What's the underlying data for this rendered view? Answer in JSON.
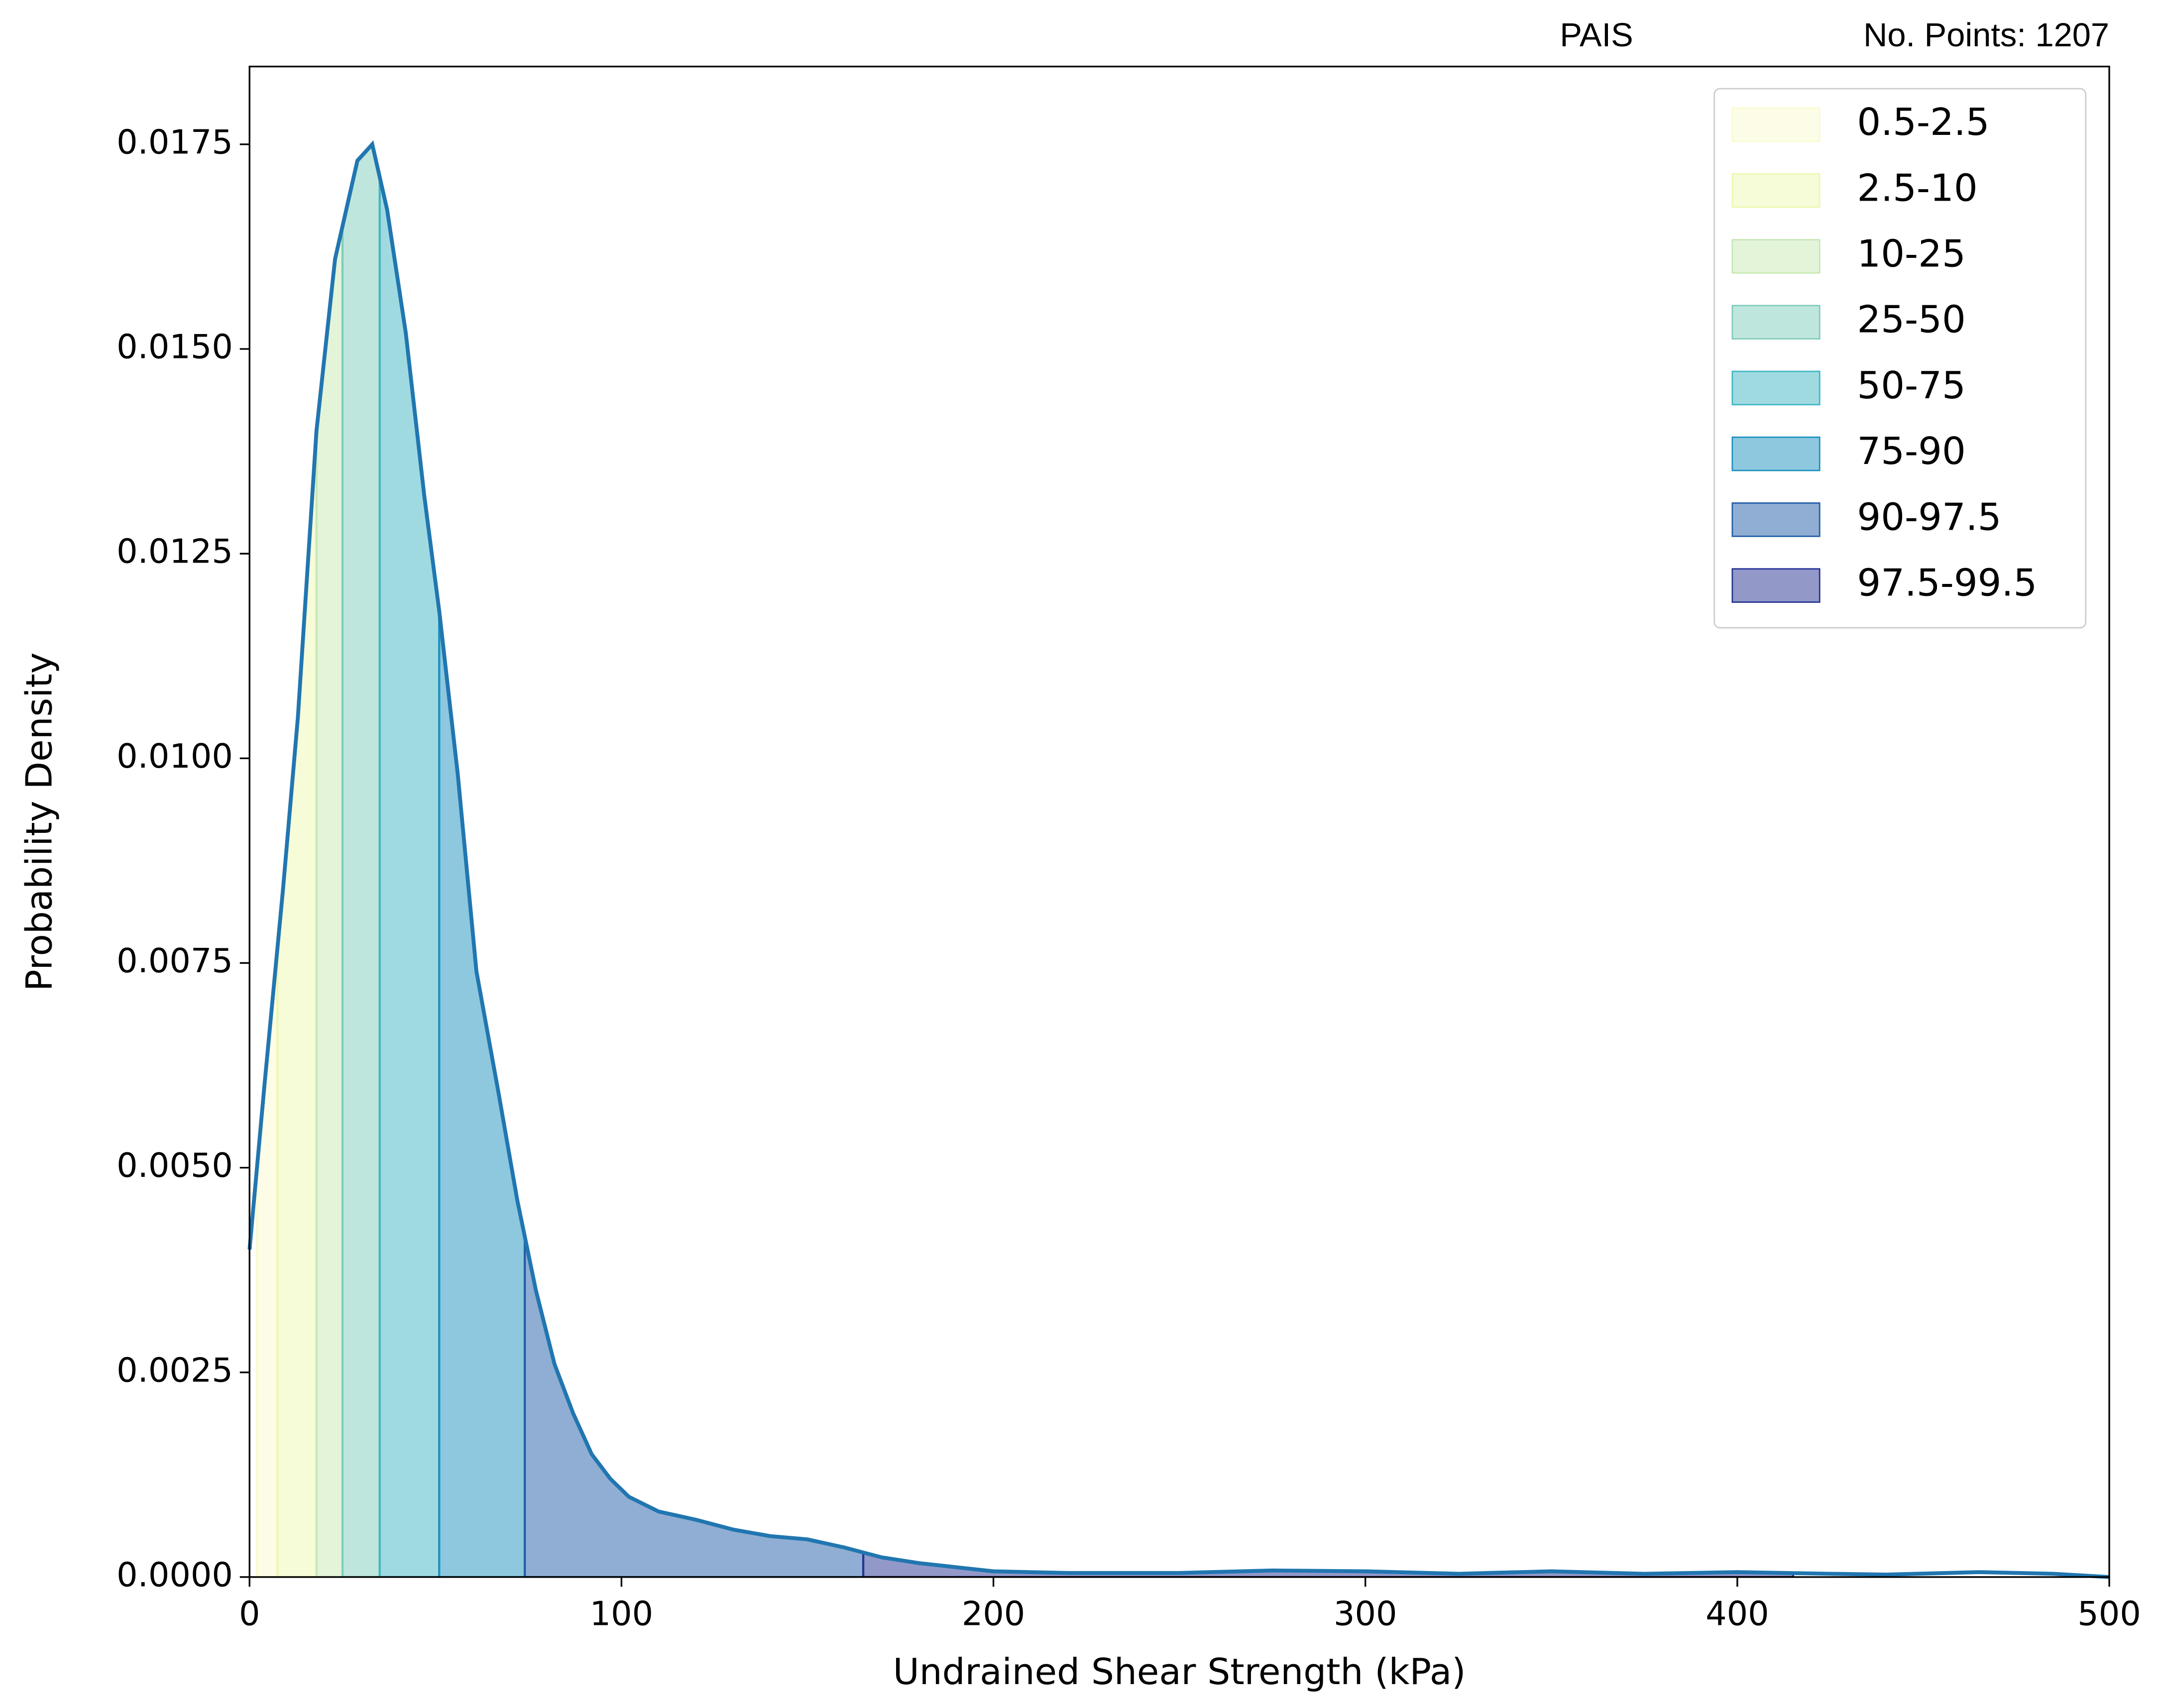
{
  "chart_data": {
    "type": "kde-bands",
    "title_left": "PAIS",
    "title_right": "No. Points: 1207",
    "x_label": "Undrained Shear Strength (kPa)",
    "y_label": "Probability Density",
    "x": [
      0,
      4,
      9,
      13,
      18,
      23,
      29,
      33,
      37,
      42,
      47,
      51,
      56,
      61,
      67,
      72,
      77,
      82,
      87,
      92,
      97,
      102,
      110,
      120,
      130,
      140,
      150,
      160,
      170,
      180,
      190,
      200,
      220,
      250,
      275,
      300,
      325,
      350,
      375,
      400,
      425,
      440,
      465,
      485,
      500
    ],
    "series": [
      {
        "name": "density",
        "color": "#2176b0",
        "values": [
          0.004,
          0.006,
          0.0084,
          0.0105,
          0.014,
          0.0161,
          0.0173,
          0.0175,
          0.0167,
          0.0152,
          0.0132,
          0.0118,
          0.0098,
          0.0074,
          0.0059,
          0.0046,
          0.0035,
          0.0026,
          0.002,
          0.0015,
          0.0012,
          0.00098,
          0.0008,
          0.0007,
          0.00058,
          0.0005,
          0.00046,
          0.00036,
          0.00024,
          0.00017,
          0.00012,
          7e-05,
          5e-05,
          5e-05,
          8e-05,
          7e-05,
          4e-05,
          7e-05,
          4e-05,
          6e-05,
          4e-05,
          3e-05,
          6e-05,
          4e-05,
          0.0
        ]
      }
    ],
    "bands": [
      {
        "name": "0.5-2.5",
        "color": "#fbfbd0",
        "from": 2,
        "to": 7.5
      },
      {
        "name": "2.5-10",
        "color": "#edf8b1",
        "from": 7.5,
        "to": 18
      },
      {
        "name": "10-25",
        "color": "#c7e9b4",
        "from": 18,
        "to": 25
      },
      {
        "name": "25-50",
        "color": "#7fcdbb",
        "from": 25,
        "to": 35
      },
      {
        "name": "50-75",
        "color": "#41b6c4",
        "from": 35,
        "to": 51
      },
      {
        "name": "75-90",
        "color": "#1d91c0",
        "from": 51,
        "to": 74
      },
      {
        "name": "90-97.5",
        "color": "#225ea8",
        "from": 74,
        "to": 165
      },
      {
        "name": "97.5-99.5",
        "color": "#253494",
        "from": 165,
        "to": 415
      }
    ],
    "band_opacity": 0.5,
    "xlim": [
      0,
      500
    ],
    "ylim": [
      0,
      0.01845
    ],
    "xticks": [
      0,
      100,
      200,
      300,
      400,
      500
    ],
    "yticks": [
      {
        "value": 0,
        "label": "0.0000"
      },
      {
        "value": 0.0025,
        "label": "0.0025"
      },
      {
        "value": 0.005,
        "label": "0.0050"
      },
      {
        "value": 0.0075,
        "label": "0.0075"
      },
      {
        "value": 0.01,
        "label": "0.0100"
      },
      {
        "value": 0.0125,
        "label": "0.0125"
      },
      {
        "value": 0.015,
        "label": "0.0150"
      },
      {
        "value": 0.0175,
        "label": "0.0175"
      }
    ],
    "legend": "upper right"
  }
}
